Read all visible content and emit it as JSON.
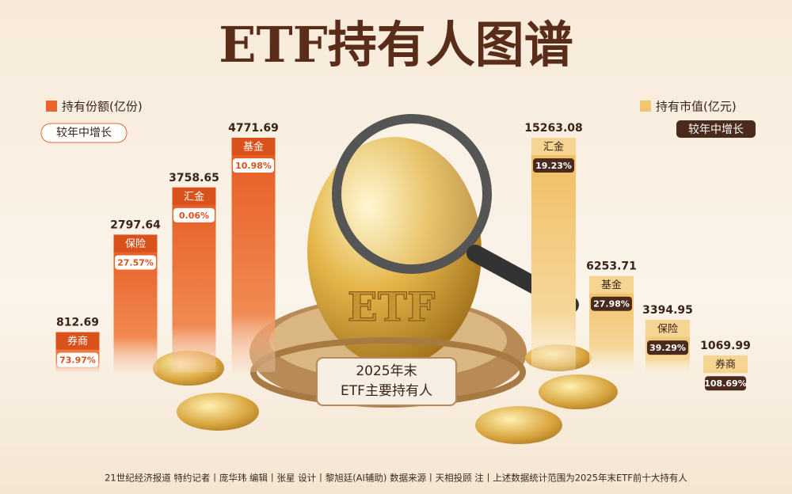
{
  "title": "ETF持有人图谱",
  "center_label": [
    "2025年末",
    "ETF主要持有人"
  ],
  "egg_text": "ETF",
  "footer": "21世纪经济报道  特约记者丨庞华玮  编辑丨张星  设计丨黎旭廷(AI辅助)  数据来源丨天相投顾  注丨上述数据统计范围为2025年末ETF前十大持有人",
  "chart_data": [
    {
      "type": "bar",
      "title": "持有份额(亿份)",
      "subtitle": "较年中增长",
      "color": "#e8662e",
      "categories": [
        "券商",
        "保险",
        "汇金",
        "基金"
      ],
      "values": [
        812.69,
        2797.64,
        3758.65,
        4771.69
      ],
      "growth_labels": [
        "73.97%",
        "27.57%",
        "0.06%",
        "10.98%"
      ]
    },
    {
      "type": "bar",
      "title": "持有市值(亿元)",
      "subtitle": "较年中增长",
      "color": "#f2c56e",
      "categories": [
        "汇金",
        "基金",
        "保险",
        "券商"
      ],
      "values": [
        15263.08,
        6253.71,
        3394.95,
        1069.99
      ],
      "growth_labels": [
        "19.23%",
        "27.98%",
        "39.29%",
        "108.69%"
      ]
    }
  ]
}
